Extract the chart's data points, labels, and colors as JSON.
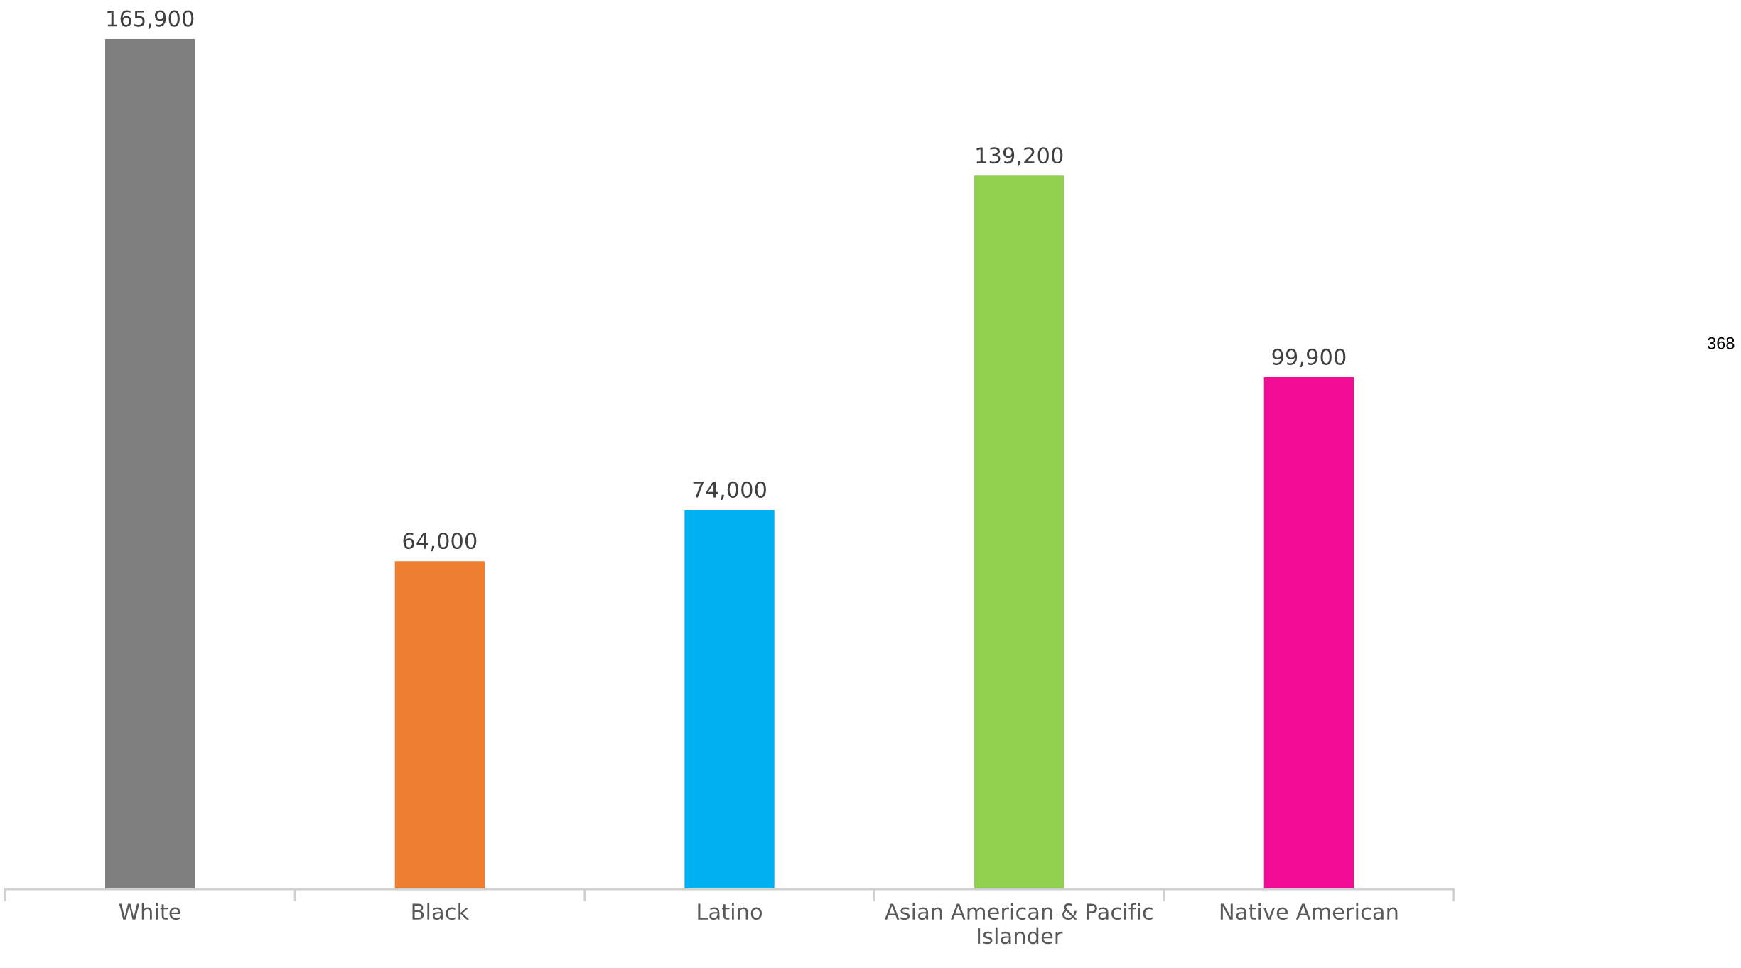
{
  "chart_data": {
    "type": "bar",
    "categories": [
      "White",
      "Black",
      "Latino",
      "Asian American & Pacific Islander",
      "Native American"
    ],
    "values": [
      165900,
      64000,
      74000,
      139200,
      99900
    ],
    "colors": [
      "#7f7f7f",
      "#ed7d31",
      "#00b0f0",
      "#92d050",
      "#f00c94"
    ],
    "value_labels": [
      "165,900",
      "64,000",
      "74,000",
      "139,200",
      "99,900"
    ],
    "grid": false,
    "legend": false,
    "annotations": [
      "368"
    ]
  }
}
